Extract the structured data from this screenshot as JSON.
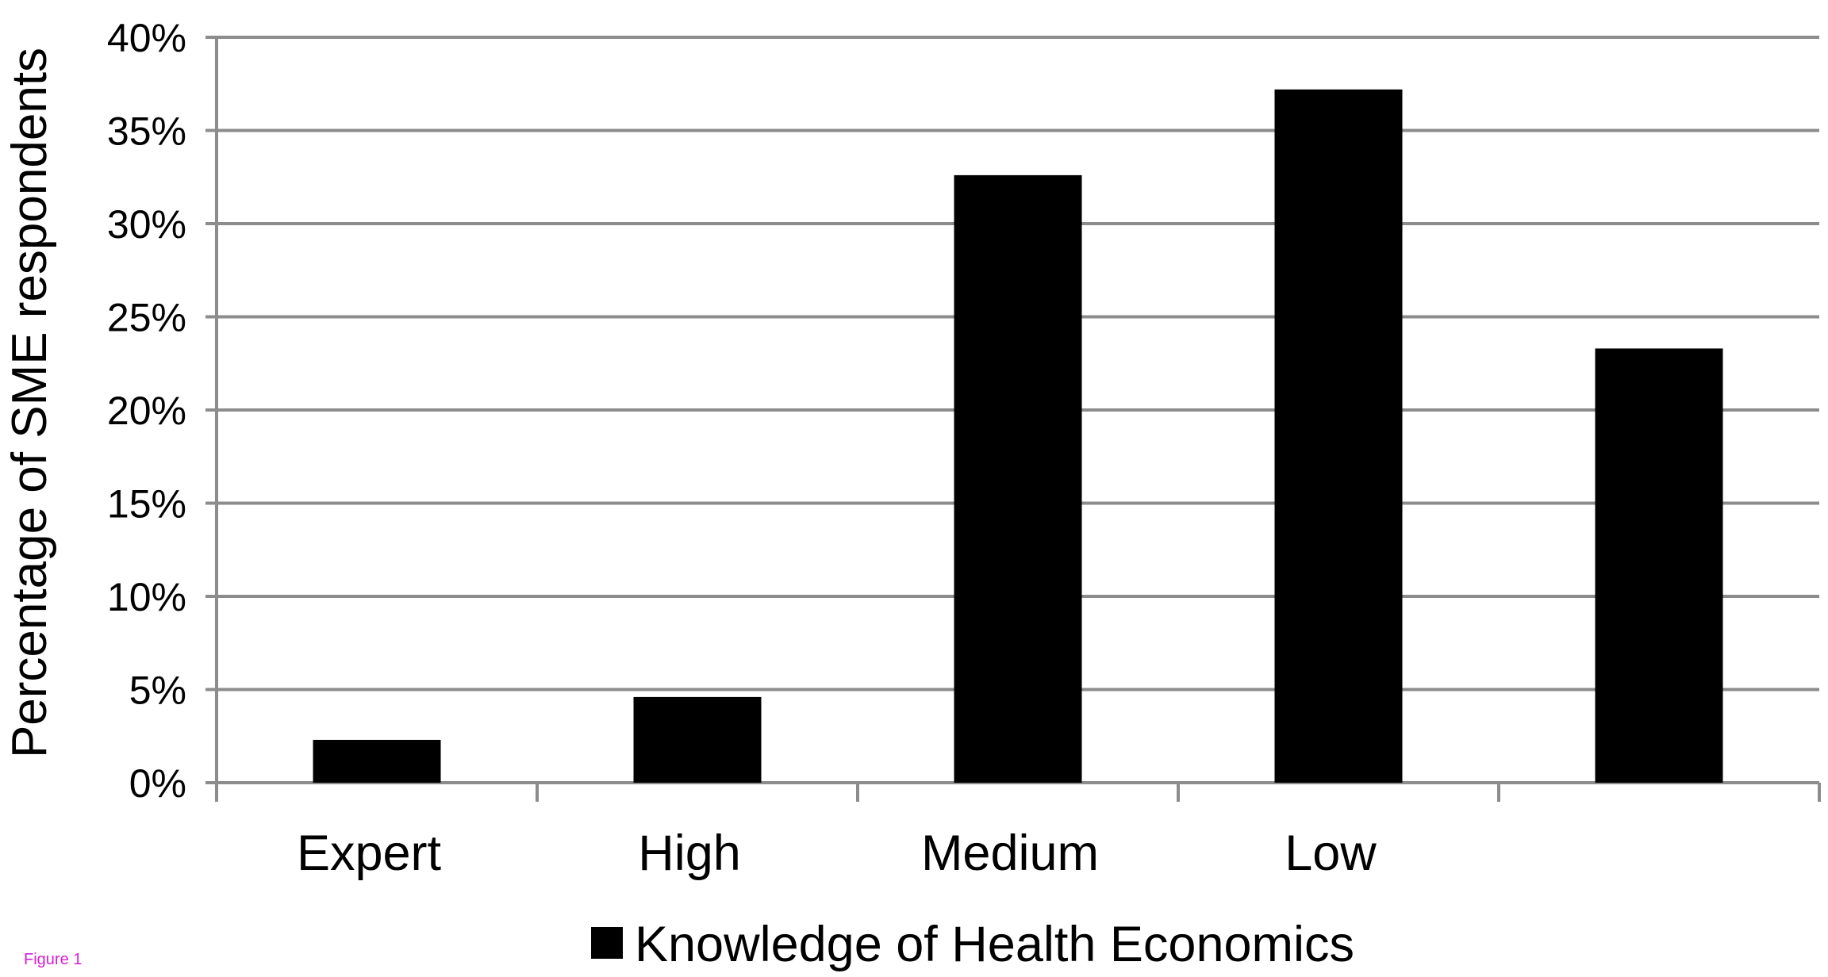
{
  "figure_label": "Figure 1",
  "chart_data": {
    "type": "bar",
    "categories": [
      "Expert",
      "High",
      "Medium",
      "Low",
      ""
    ],
    "series": [
      {
        "name": "Knowledge of Health Economics",
        "values": [
          2.3,
          4.6,
          32.6,
          37.2,
          23.3
        ],
        "color": "#000000"
      }
    ],
    "ylabel": "Percentage of SME respondents",
    "ylim": [
      0,
      40
    ],
    "yticks": [
      "0%",
      "5%",
      "10%",
      "15%",
      "20%",
      "25%",
      "30%",
      "35%",
      "40%"
    ],
    "ytick_step": 5,
    "grid": true,
    "gridline_color": "#8c8c8c",
    "legend_position": "bottom"
  }
}
